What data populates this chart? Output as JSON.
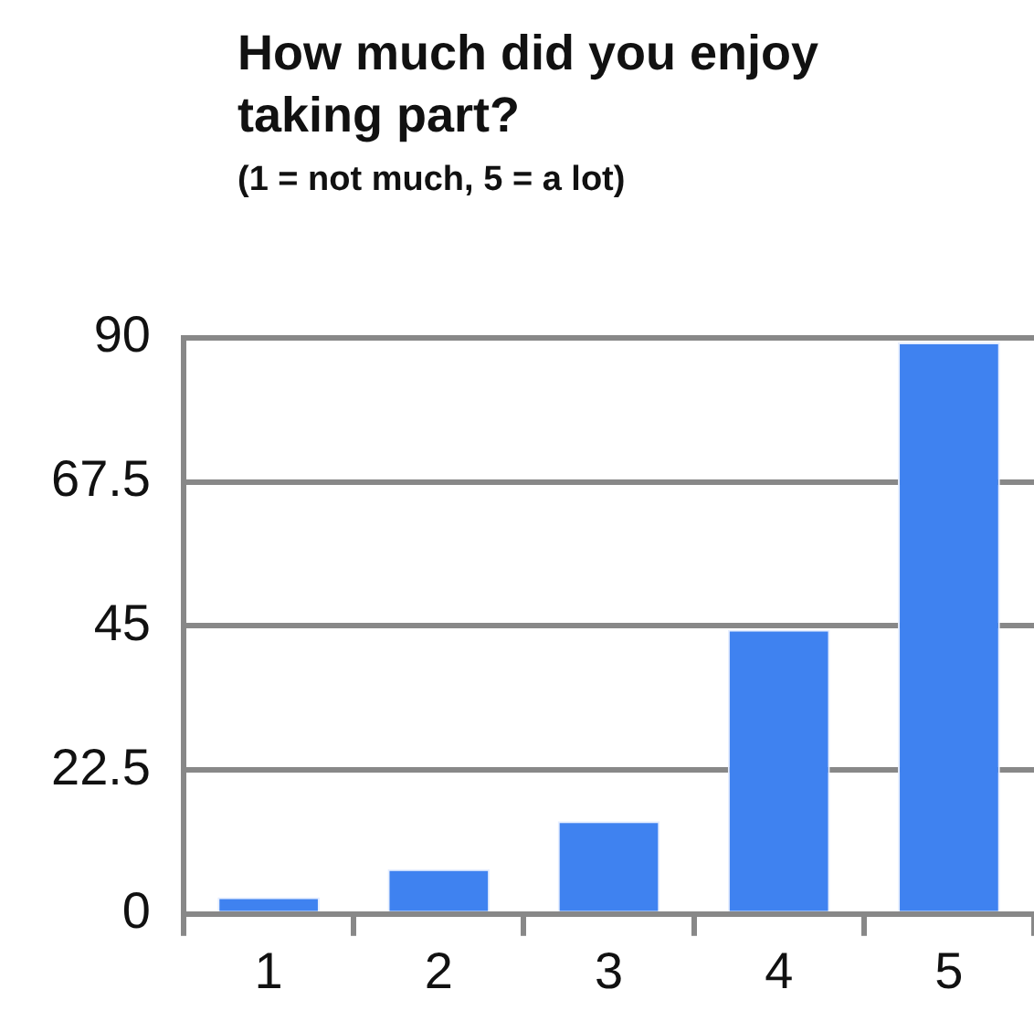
{
  "chart_data": {
    "type": "bar",
    "title": "How much did you enjoy taking part?",
    "subtitle": "(1 = not much, 5 = a lot)",
    "categories": [
      "1",
      "2",
      "3",
      "4",
      "5"
    ],
    "values": [
      2.6,
      7,
      14.5,
      44.4,
      89.3
    ],
    "color": "#3f82f0",
    "ylim": [
      0,
      90
    ],
    "yticks": [
      0,
      22.5,
      45,
      67.5,
      90
    ],
    "grid": "y"
  }
}
